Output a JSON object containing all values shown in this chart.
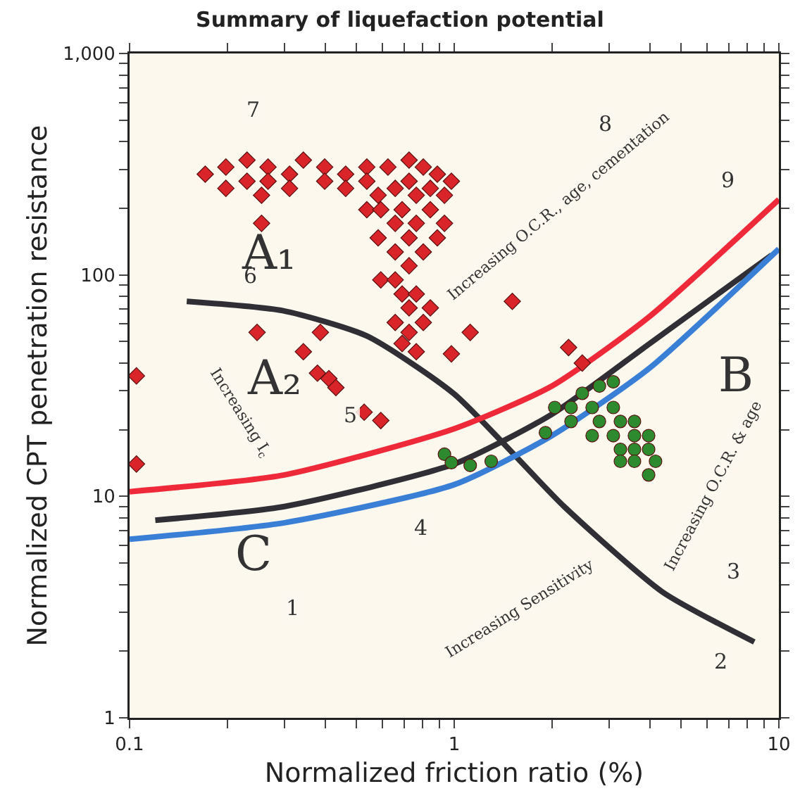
{
  "chart_data": {
    "type": "scatter",
    "title": "Summary of liquefaction potential",
    "xlabel": "Normalized friction ratio (%)",
    "ylabel": "Normalized CPT penetration resistance",
    "log": "xy",
    "grid": false,
    "xlim": [
      0.1,
      10
    ],
    "ylim": [
      1,
      1000
    ],
    "xticks": [
      0.1,
      {
        "value": 0.2,
        "label": null
      },
      {
        "value": 0.3,
        "label": null
      },
      {
        "value": 0.4,
        "label": null
      },
      {
        "value": 0.5,
        "label": null
      },
      {
        "value": 0.6,
        "label": null
      },
      {
        "value": 0.7,
        "label": null
      },
      {
        "value": 0.8,
        "label": null
      },
      {
        "value": 0.9,
        "label": null
      },
      1,
      {
        "value": 2,
        "label": null
      },
      {
        "value": 3,
        "label": null
      },
      {
        "value": 4,
        "label": null
      },
      {
        "value": 5,
        "label": null
      },
      {
        "value": 6,
        "label": null
      },
      {
        "value": 7,
        "label": null
      },
      {
        "value": 8,
        "label": null
      },
      {
        "value": 9,
        "label": null
      },
      10
    ],
    "yticks": [
      1,
      {
        "value": 2,
        "label": null
      },
      {
        "value": 3,
        "label": null
      },
      {
        "value": 4,
        "label": null
      },
      {
        "value": 5,
        "label": null
      },
      {
        "value": 6,
        "label": null
      },
      {
        "value": 7,
        "label": null
      },
      {
        "value": 8,
        "label": null
      },
      {
        "value": 9,
        "label": null
      },
      10,
      {
        "value": 20,
        "label": null
      },
      {
        "value": 30,
        "label": null
      },
      {
        "value": 40,
        "label": null
      },
      {
        "value": 50,
        "label": null
      },
      {
        "value": 60,
        "label": null
      },
      {
        "value": 70,
        "label": null
      },
      {
        "value": 80,
        "label": null
      },
      {
        "value": 90,
        "label": null
      },
      100,
      {
        "value": 200,
        "label": null
      },
      {
        "value": 300,
        "label": null
      },
      {
        "value": 400,
        "label": null
      },
      {
        "value": 500,
        "label": null
      },
      {
        "value": 600,
        "label": null
      },
      {
        "value": 700,
        "label": null
      },
      {
        "value": 800,
        "label": null
      },
      {
        "value": 900,
        "label": null
      },
      {
        "value": 1000,
        "label": "1,000"
      }
    ],
    "series": [
      {
        "type": "line",
        "color": "#2f2f35",
        "line_style": "solid",
        "marker": "none",
        "x": [
          0.15,
          0.296,
          0.538,
          1,
          2.18,
          4.38,
          8.4
        ],
        "values": [
          76,
          69,
          53,
          29,
          9.0,
          3.7,
          2.2
        ]
      },
      {
        "type": "line",
        "color": "#2f2f35",
        "line_style": "solid",
        "marker": "none",
        "x": [
          0.12,
          0.3,
          1,
          2,
          4,
          9.5
        ],
        "values": [
          7.8,
          9.0,
          14,
          23.5,
          49,
          123
        ]
      },
      {
        "type": "line",
        "color": "#ee2a3a",
        "line_style": "solid",
        "marker": "none",
        "x": [
          0.1,
          0.3,
          1,
          2,
          4,
          10
        ],
        "values": [
          10.5,
          12.5,
          20.2,
          31.5,
          65,
          219
        ]
      },
      {
        "type": "line",
        "color": "#3a7fd6",
        "line_style": "solid",
        "marker": "none",
        "x": [
          0.1,
          0.3,
          1,
          2,
          4,
          10
        ],
        "values": [
          6.4,
          7.6,
          11.3,
          18.8,
          38,
          131
        ]
      },
      {
        "type": "scatter",
        "color": "#d9252a",
        "marker": "diamond",
        "x": [
          0.171,
          0.198,
          0.23,
          0.267,
          0.311,
          0.343,
          0.399,
          0.463,
          0.538,
          0.625,
          0.726,
          0.803,
          0.887,
          0.98,
          0.198,
          0.23,
          0.255,
          0.267,
          0.311,
          0.399,
          0.463,
          0.538,
          0.583,
          0.658,
          0.726,
          0.764,
          0.844,
          0.933,
          0.538,
          0.594,
          0.658,
          0.691,
          0.726,
          0.764,
          0.844,
          0.933,
          0.583,
          0.658,
          0.726,
          0.803,
          0.887,
          0.594,
          0.658,
          0.691,
          0.726,
          0.764,
          0.803,
          0.726,
          0.844,
          0.658,
          0.691,
          0.764,
          0.255,
          0.247,
          0.387,
          0.343,
          0.379,
          0.411,
          0.432,
          0.528,
          0.594,
          1.51,
          1.12,
          0.98,
          2.25,
          2.48,
          0.105,
          0.105
        ],
        "values": [
          285,
          307,
          330,
          307,
          285,
          330,
          307,
          285,
          307,
          307,
          330,
          307,
          285,
          265,
          246,
          265,
          229,
          265,
          246,
          265,
          246,
          265,
          229,
          246,
          265,
          229,
          246,
          229,
          197,
          197,
          171,
          197,
          147,
          171,
          197,
          171,
          147,
          127,
          110,
          127,
          147,
          95,
          95,
          82,
          71,
          82,
          61,
          55,
          71,
          61,
          49,
          45,
          171,
          55,
          55,
          45,
          36,
          34,
          31,
          24,
          22,
          76,
          55,
          44,
          47,
          40,
          35,
          14
        ]
      },
      {
        "type": "scatter",
        "color": "#2e8a2e",
        "marker": "circle",
        "x": [
          2.48,
          2.8,
          3.09,
          2.04,
          2.29,
          2.66,
          3.09,
          2.29,
          2.8,
          3.25,
          3.59,
          2.66,
          3.09,
          3.59,
          3.97,
          3.25,
          3.59,
          3.97,
          4.17,
          3.59,
          3.25,
          3.97,
          0.933,
          0.98,
          1.12,
          1.3,
          1.91
        ],
        "values": [
          29.2,
          31.5,
          32.9,
          25.2,
          25.2,
          25.2,
          25.2,
          21.8,
          21.8,
          21.8,
          21.8,
          18.8,
          18.8,
          18.8,
          18.8,
          16.3,
          16.3,
          16.3,
          14.4,
          14.4,
          14.4,
          12.5,
          15.5,
          14.2,
          13.8,
          14.4,
          19.4
        ]
      }
    ],
    "annotations": [
      "7",
      "8",
      "9",
      "6",
      "5",
      "4",
      "3",
      "2",
      "1",
      "A₁",
      "A₂",
      "B",
      "C",
      "Increasing O.C.R., age, cementation",
      "Increasing I$_{c}$",
      "Increasing O.C.R. & age",
      "Increasing Sensitivity"
    ]
  }
}
